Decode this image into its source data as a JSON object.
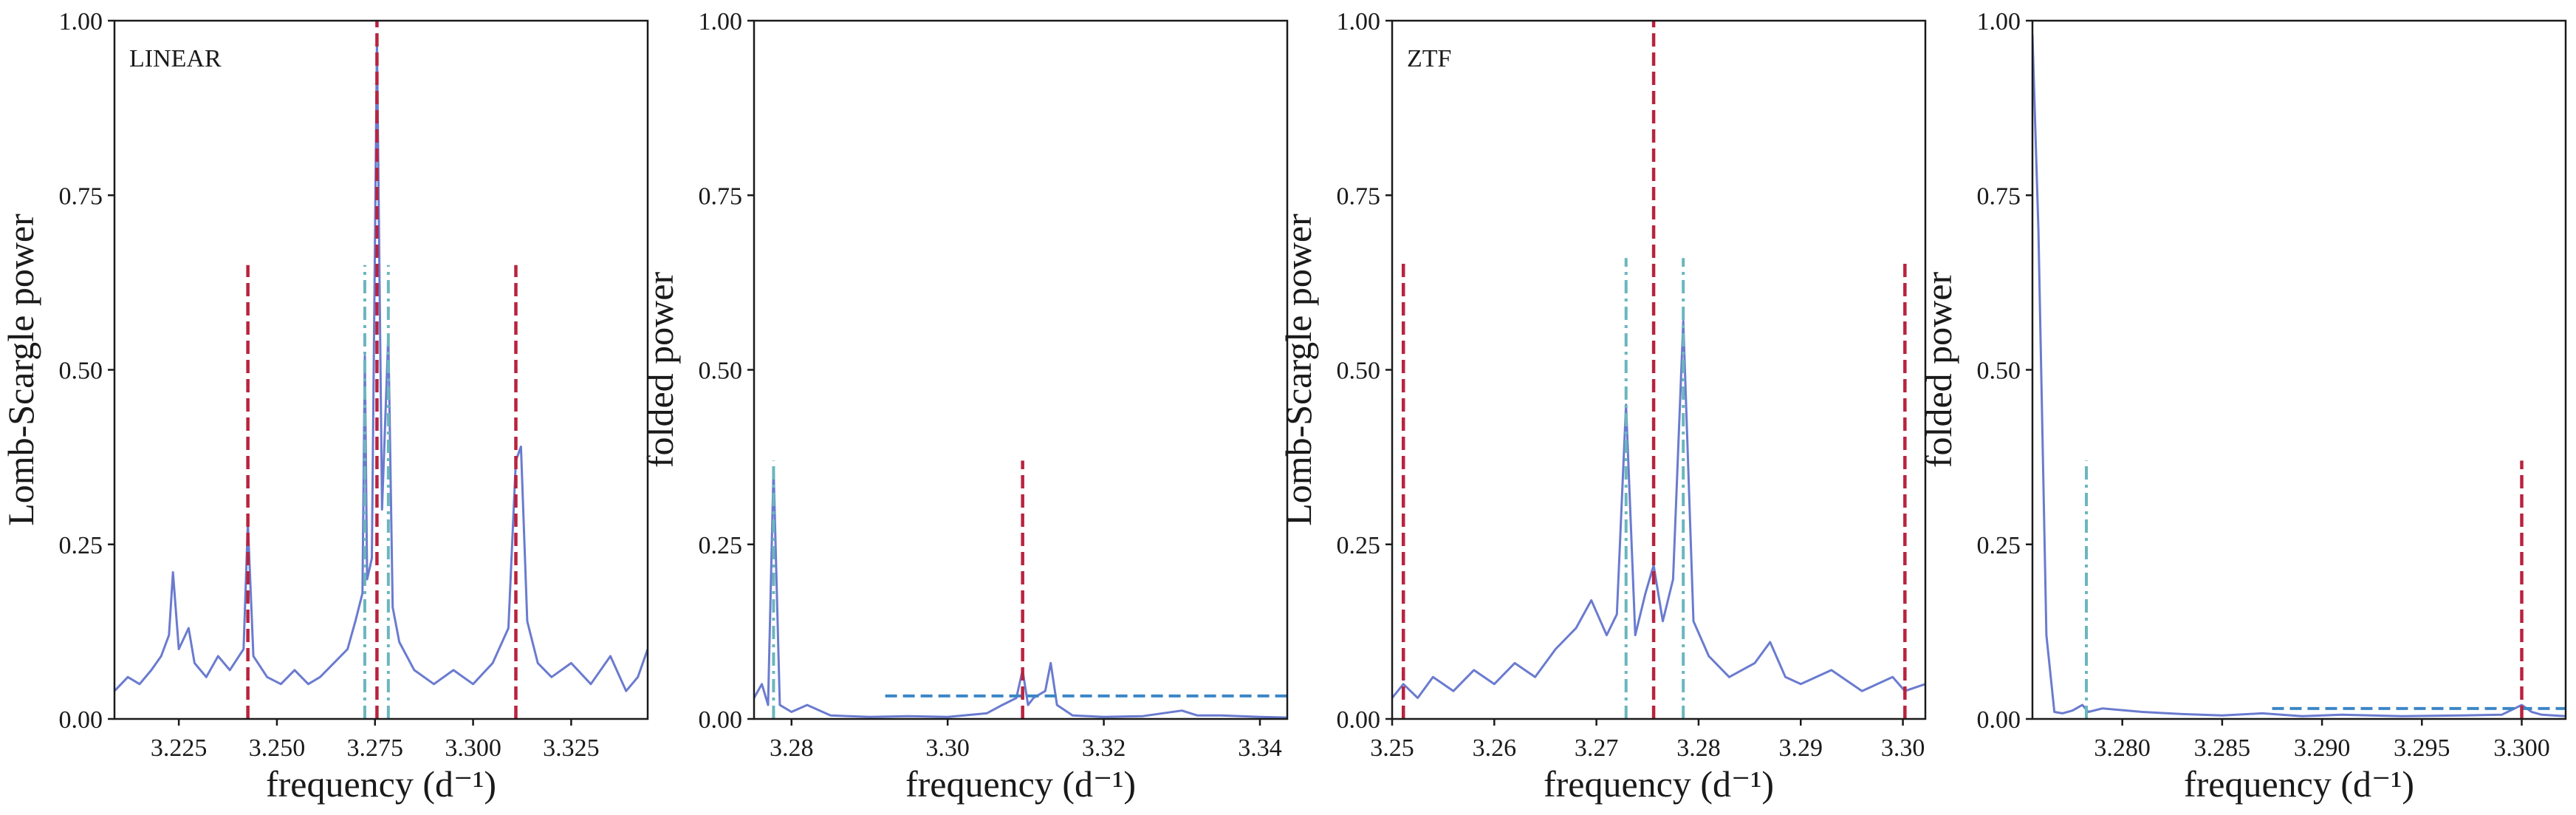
{
  "colors": {
    "power_line": "#6a7bcf",
    "red_marker": "#b8233e",
    "cyan_marker": "#6bb6bd",
    "threshold": "#3b86c6",
    "axes": "#1a1a1a"
  },
  "chart_data": [
    {
      "type": "line",
      "panel_label": "LINEAR",
      "xlabel": "frequency (d⁻¹)",
      "ylabel": "Lomb-Scargle power",
      "xlim": [
        3.2086,
        3.3445
      ],
      "ylim": [
        0,
        1
      ],
      "xticks": [
        3.225,
        3.25,
        3.275,
        3.3,
        3.325
      ],
      "xtick_labels": [
        "3.225",
        "3.250",
        "3.275",
        "3.300",
        "3.325"
      ],
      "yticks": [
        0,
        0.25,
        0.5,
        0.75,
        1.0
      ],
      "ytick_labels": [
        "0.00",
        "0.25",
        "0.50",
        "0.75",
        "1.00"
      ],
      "grid": false,
      "red_dashed": [
        {
          "x": 3.2426,
          "top": 0.65
        },
        {
          "x": 3.2755,
          "top": 1.0
        },
        {
          "x": 3.3109,
          "top": 0.65
        }
      ],
      "cyan_dashdot": [
        {
          "x": 3.2724,
          "top": 0.65
        },
        {
          "x": 3.2784,
          "top": 0.65
        }
      ],
      "series": [
        {
          "points": [
            [
              3.2086,
              0.04
            ],
            [
              3.212,
              0.06
            ],
            [
              3.215,
              0.05
            ],
            [
              3.218,
              0.07
            ],
            [
              3.2205,
              0.09
            ],
            [
              3.2225,
              0.12
            ],
            [
              3.2235,
              0.21
            ],
            [
              3.225,
              0.1
            ],
            [
              3.2275,
              0.13
            ],
            [
              3.229,
              0.08
            ],
            [
              3.232,
              0.06
            ],
            [
              3.235,
              0.09
            ],
            [
              3.238,
              0.07
            ],
            [
              3.2415,
              0.1
            ],
            [
              3.2426,
              0.28
            ],
            [
              3.244,
              0.09
            ],
            [
              3.2475,
              0.06
            ],
            [
              3.251,
              0.05
            ],
            [
              3.2545,
              0.07
            ],
            [
              3.258,
              0.05
            ],
            [
              3.261,
              0.06
            ],
            [
              3.2645,
              0.08
            ],
            [
              3.268,
              0.1
            ],
            [
              3.27,
              0.14
            ],
            [
              3.2718,
              0.18
            ],
            [
              3.2724,
              0.52
            ],
            [
              3.273,
              0.2
            ],
            [
              3.2742,
              0.23
            ],
            [
              3.2755,
              0.97
            ],
            [
              3.2768,
              0.3
            ],
            [
              3.2784,
              0.55
            ],
            [
              3.2795,
              0.16
            ],
            [
              3.2812,
              0.11
            ],
            [
              3.285,
              0.07
            ],
            [
              3.29,
              0.05
            ],
            [
              3.295,
              0.07
            ],
            [
              3.3,
              0.05
            ],
            [
              3.305,
              0.08
            ],
            [
              3.309,
              0.13
            ],
            [
              3.3109,
              0.37
            ],
            [
              3.3122,
              0.39
            ],
            [
              3.3138,
              0.14
            ],
            [
              3.3165,
              0.08
            ],
            [
              3.32,
              0.06
            ],
            [
              3.325,
              0.08
            ],
            [
              3.33,
              0.05
            ],
            [
              3.335,
              0.09
            ],
            [
              3.339,
              0.04
            ],
            [
              3.342,
              0.06
            ],
            [
              3.3445,
              0.1
            ]
          ]
        }
      ]
    },
    {
      "type": "line",
      "panel_label": "",
      "xlabel": "frequency (d⁻¹)",
      "ylabel": "folded power",
      "xlim": [
        3.2752,
        3.3435
      ],
      "ylim": [
        0,
        1
      ],
      "xticks": [
        3.28,
        3.3,
        3.32,
        3.34
      ],
      "xtick_labels": [
        "3.28",
        "3.30",
        "3.32",
        "3.34"
      ],
      "yticks": [
        0,
        0.25,
        0.5,
        0.75,
        1.0
      ],
      "ytick_labels": [
        "0.00",
        "0.25",
        "0.50",
        "0.75",
        "1.00"
      ],
      "grid": false,
      "threshold": {
        "y": 0.033,
        "x_start": 3.292
      },
      "red_dashed": [
        {
          "x": 3.3096,
          "top": 0.37
        }
      ],
      "cyan_dashdot": [
        {
          "x": 3.2777,
          "top": 0.37
        }
      ],
      "series": [
        {
          "points": [
            [
              3.2752,
              0.03
            ],
            [
              3.2762,
              0.05
            ],
            [
              3.277,
              0.02
            ],
            [
              3.2777,
              0.36
            ],
            [
              3.2785,
              0.02
            ],
            [
              3.28,
              0.01
            ],
            [
              3.282,
              0.02
            ],
            [
              3.285,
              0.005
            ],
            [
              3.29,
              0.003
            ],
            [
              3.295,
              0.004
            ],
            [
              3.3,
              0.003
            ],
            [
              3.305,
              0.008
            ],
            [
              3.307,
              0.02
            ],
            [
              3.3088,
              0.03
            ],
            [
              3.3096,
              0.07
            ],
            [
              3.3103,
              0.02
            ],
            [
              3.311,
              0.03
            ],
            [
              3.3125,
              0.04
            ],
            [
              3.3132,
              0.08
            ],
            [
              3.314,
              0.02
            ],
            [
              3.316,
              0.005
            ],
            [
              3.32,
              0.003
            ],
            [
              3.325,
              0.004
            ],
            [
              3.33,
              0.012
            ],
            [
              3.332,
              0.005
            ],
            [
              3.335,
              0.005
            ],
            [
              3.34,
              0.003
            ],
            [
              3.3435,
              0.002
            ]
          ]
        }
      ]
    },
    {
      "type": "line",
      "panel_label": "ZTF",
      "xlabel": "frequency (d⁻¹)",
      "ylabel": "Lomb-Scargle power",
      "xlim": [
        3.25,
        3.3022
      ],
      "ylim": [
        0,
        1
      ],
      "xticks": [
        3.25,
        3.26,
        3.27,
        3.28,
        3.29,
        3.3
      ],
      "xtick_labels": [
        "3.25",
        "3.26",
        "3.27",
        "3.28",
        "3.29",
        "3.30"
      ],
      "yticks": [
        0,
        0.25,
        0.5,
        0.75,
        1.0
      ],
      "ytick_labels": [
        "0.00",
        "0.25",
        "0.50",
        "0.75",
        "1.00"
      ],
      "grid": false,
      "red_dashed": [
        {
          "x": 3.2511,
          "top": 0.66
        },
        {
          "x": 3.2756,
          "top": 1.0
        },
        {
          "x": 3.3002,
          "top": 0.66
        }
      ],
      "cyan_dashdot": [
        {
          "x": 3.2729,
          "top": 0.66
        },
        {
          "x": 3.2785,
          "top": 0.66
        }
      ],
      "series": [
        {
          "points": [
            [
              3.25,
              0.03
            ],
            [
              3.2511,
              0.05
            ],
            [
              3.2525,
              0.03
            ],
            [
              3.254,
              0.06
            ],
            [
              3.256,
              0.04
            ],
            [
              3.258,
              0.07
            ],
            [
              3.26,
              0.05
            ],
            [
              3.262,
              0.08
            ],
            [
              3.264,
              0.06
            ],
            [
              3.266,
              0.1
            ],
            [
              3.268,
              0.13
            ],
            [
              3.2695,
              0.17
            ],
            [
              3.271,
              0.12
            ],
            [
              3.272,
              0.15
            ],
            [
              3.2729,
              0.45
            ],
            [
              3.2738,
              0.12
            ],
            [
              3.2748,
              0.18
            ],
            [
              3.2756,
              0.22
            ],
            [
              3.2765,
              0.14
            ],
            [
              3.2775,
              0.2
            ],
            [
              3.2785,
              0.57
            ],
            [
              3.2795,
              0.14
            ],
            [
              3.281,
              0.09
            ],
            [
              3.283,
              0.06
            ],
            [
              3.2855,
              0.08
            ],
            [
              3.287,
              0.11
            ],
            [
              3.2885,
              0.06
            ],
            [
              3.29,
              0.05
            ],
            [
              3.293,
              0.07
            ],
            [
              3.296,
              0.04
            ],
            [
              3.299,
              0.06
            ],
            [
              3.3002,
              0.04
            ],
            [
              3.3022,
              0.05
            ]
          ]
        }
      ]
    },
    {
      "type": "line",
      "panel_label": "",
      "xlabel": "frequency (d⁻¹)",
      "ylabel": "folded power",
      "xlim": [
        3.2755,
        3.3022
      ],
      "ylim": [
        0,
        1
      ],
      "xticks": [
        3.28,
        3.285,
        3.29,
        3.295,
        3.3
      ],
      "xtick_labels": [
        "3.280",
        "3.285",
        "3.290",
        "3.295",
        "3.300"
      ],
      "yticks": [
        0,
        0.25,
        0.5,
        0.75,
        1.0
      ],
      "ytick_labels": [
        "0.00",
        "0.25",
        "0.50",
        "0.75",
        "1.00"
      ],
      "grid": false,
      "threshold": {
        "y": 0.015,
        "x_start": 3.2875
      },
      "red_dashed": [
        {
          "x": 3.3,
          "top": 0.37
        }
      ],
      "cyan_dashdot": [
        {
          "x": 3.2782,
          "top": 0.37
        }
      ],
      "series": [
        {
          "points": [
            [
              3.2755,
              0.98
            ],
            [
              3.2758,
              0.7
            ],
            [
              3.2762,
              0.12
            ],
            [
              3.2766,
              0.01
            ],
            [
              3.277,
              0.008
            ],
            [
              3.2775,
              0.012
            ],
            [
              3.278,
              0.02
            ],
            [
              3.2783,
              0.01
            ],
            [
              3.279,
              0.015
            ],
            [
              3.281,
              0.01
            ],
            [
              3.283,
              0.007
            ],
            [
              3.285,
              0.005
            ],
            [
              3.287,
              0.008
            ],
            [
              3.289,
              0.004
            ],
            [
              3.291,
              0.006
            ],
            [
              3.294,
              0.004
            ],
            [
              3.297,
              0.005
            ],
            [
              3.299,
              0.006
            ],
            [
              3.3,
              0.02
            ],
            [
              3.3005,
              0.01
            ],
            [
              3.301,
              0.006
            ],
            [
              3.3022,
              0.004
            ]
          ]
        }
      ]
    }
  ]
}
